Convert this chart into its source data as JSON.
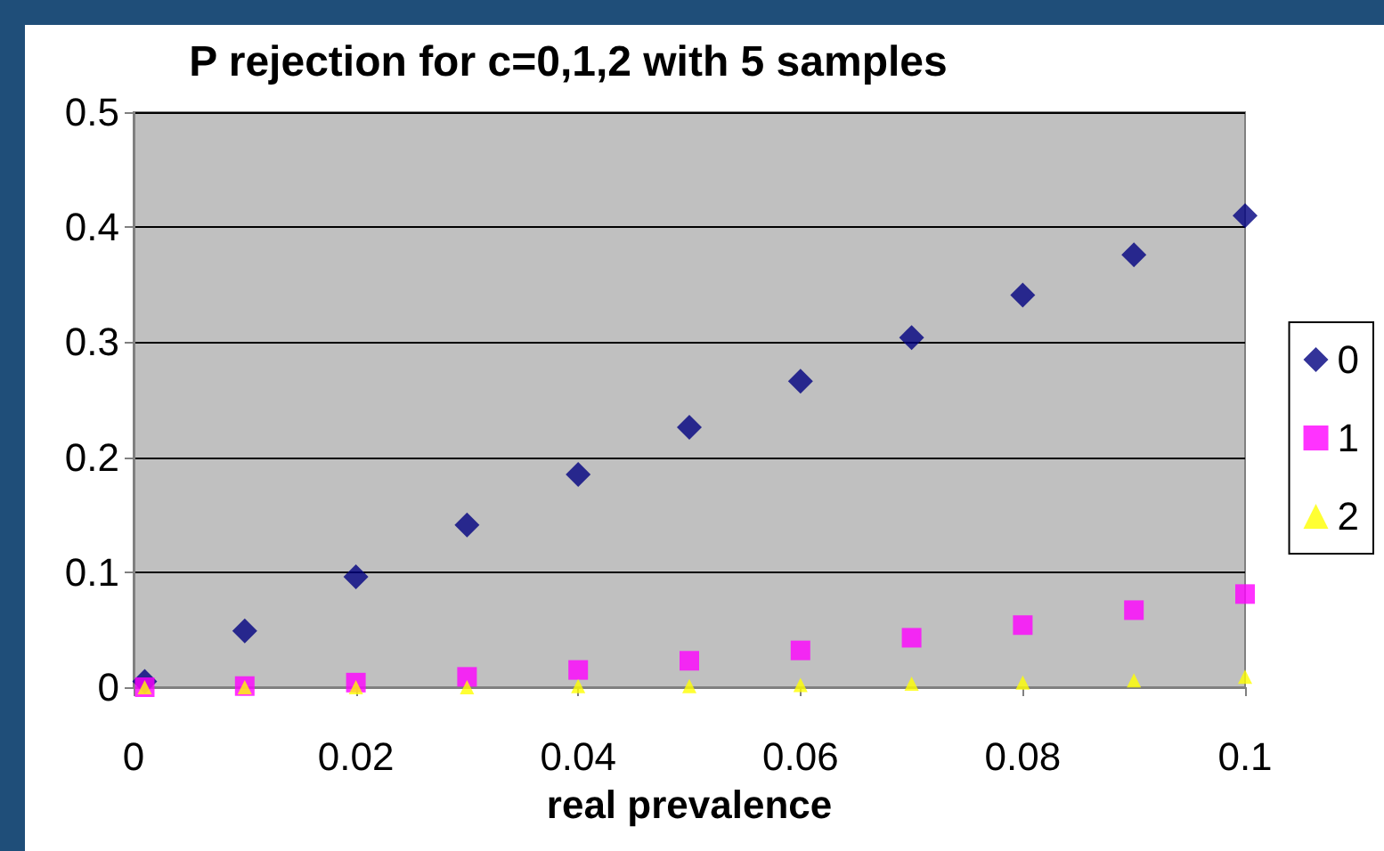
{
  "chart_data": {
    "type": "scatter",
    "title": "P rejection for c=0,1,2 with 5 samples",
    "xlabel": "real prevalence",
    "x": [
      0.001,
      0.01,
      0.02,
      0.03,
      0.04,
      0.05,
      0.06,
      0.07,
      0.08,
      0.09,
      0.1
    ],
    "series": [
      {
        "name": "0",
        "color": "#000080",
        "marker": "diamond",
        "values": [
          0.005,
          0.049,
          0.096,
          0.141,
          0.185,
          0.226,
          0.266,
          0.304,
          0.341,
          0.376,
          0.41
        ]
      },
      {
        "name": "1",
        "color": "#ff00ff",
        "marker": "square",
        "values": [
          0,
          0.001,
          0.004,
          0.009,
          0.015,
          0.023,
          0.032,
          0.043,
          0.054,
          0.067,
          0.081
        ]
      },
      {
        "name": "2",
        "color": "#ffff00",
        "marker": "triangle",
        "values": [
          0,
          0,
          0,
          0,
          0.001,
          0.001,
          0.002,
          0.003,
          0.004,
          0.006,
          0.009
        ]
      }
    ],
    "xlim": [
      0,
      0.1
    ],
    "xticks": [
      0,
      0.02,
      0.04,
      0.06,
      0.08,
      0.1
    ],
    "ylim": [
      0,
      0.5
    ],
    "yticks": [
      0,
      0.1,
      0.2,
      0.3,
      0.4,
      0.5
    ],
    "grid": "y",
    "legend": "right"
  }
}
